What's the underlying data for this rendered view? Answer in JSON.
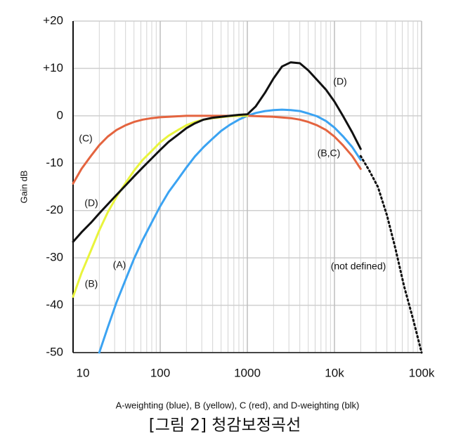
{
  "chart_data": {
    "type": "line",
    "log_x": true,
    "grid": true,
    "y_label": "Gain dB",
    "x_label": "A-weighting (blue), B (yellow), C (red), and D-weighting (blk)",
    "caption": "[그림 2] 청감보정곡선",
    "xlim": [
      10,
      100000
    ],
    "xticks": [
      10,
      100,
      1000,
      {
        "value": 10000,
        "label": "10k"
      },
      {
        "value": 100000,
        "label": "100k"
      }
    ],
    "ylim": [
      -50,
      20
    ],
    "yticks": [
      -50,
      -40,
      -30,
      -20,
      -10,
      0,
      {
        "value": 10,
        "label": "+10"
      },
      {
        "value": 20,
        "label": "+20"
      }
    ],
    "series": [
      {
        "name": "A",
        "color": "#3ba3f2",
        "dashed": false,
        "x": [
          20,
          25,
          31.5,
          40,
          50,
          63,
          80,
          100,
          125,
          160,
          200,
          250,
          315,
          400,
          500,
          630,
          800,
          1000,
          1250,
          1600,
          2000,
          2500,
          3150,
          4000,
          5000,
          6300,
          8000,
          10000,
          12500,
          16000,
          20000
        ],
        "values": [
          -50,
          -44.7,
          -39.4,
          -34.6,
          -30.2,
          -26.2,
          -22.5,
          -19.1,
          -16.1,
          -13.4,
          -10.9,
          -8.6,
          -6.6,
          -4.8,
          -3.2,
          -1.9,
          -0.8,
          0,
          0.6,
          1.0,
          1.2,
          1.3,
          1.2,
          1.0,
          0.5,
          -0.1,
          -1.1,
          -2.5,
          -4.3,
          -6.6,
          -9.3
        ]
      },
      {
        "name": "C",
        "color": "#e4643f",
        "dashed": false,
        "x": [
          10,
          12.5,
          16,
          20,
          25,
          31.5,
          40,
          50,
          63,
          80,
          100,
          125,
          160,
          200,
          500,
          1000,
          2000,
          3150,
          4000,
          5000,
          6300,
          8000,
          10000,
          12500,
          16000,
          20000
        ],
        "values": [
          -14.3,
          -11.2,
          -8.5,
          -6.2,
          -4.4,
          -3.0,
          -2.0,
          -1.3,
          -0.8,
          -0.5,
          -0.3,
          -0.2,
          -0.1,
          0,
          0,
          0,
          -0.2,
          -0.5,
          -0.8,
          -1.3,
          -2.0,
          -3.0,
          -4.4,
          -6.2,
          -8.5,
          -11.2
        ]
      },
      {
        "name": "B",
        "color": "#e9f43c",
        "dashed": false,
        "x": [
          10,
          12.5,
          16,
          20,
          25,
          31.5,
          40,
          50,
          63,
          80,
          100,
          125,
          160,
          200,
          250,
          315,
          400,
          500,
          630,
          800,
          1000
        ],
        "values": [
          -38.2,
          -33.2,
          -28.5,
          -24.2,
          -20.4,
          -17.1,
          -14.2,
          -11.6,
          -9.3,
          -7.4,
          -5.6,
          -4.2,
          -3.0,
          -2.0,
          -1.3,
          -0.8,
          -0.5,
          -0.3,
          -0.1,
          0,
          0
        ]
      },
      {
        "name": "D",
        "color": "#111111",
        "dashed": false,
        "x": [
          10,
          12.5,
          16,
          20,
          25,
          31.5,
          40,
          50,
          63,
          80,
          100,
          125,
          160,
          200,
          250,
          315,
          400,
          500,
          630,
          800,
          1000,
          1250,
          1600,
          2000,
          2500,
          3150,
          4000,
          5000,
          6300,
          8000,
          10000,
          12500,
          16000,
          20000
        ],
        "values": [
          -26.6,
          -24.6,
          -22.6,
          -20.6,
          -18.7,
          -16.7,
          -14.7,
          -12.8,
          -10.9,
          -9.0,
          -7.2,
          -5.5,
          -4.0,
          -2.6,
          -1.6,
          -0.8,
          -0.4,
          -0.2,
          0,
          0.2,
          0.3,
          2.0,
          4.9,
          7.9,
          10.4,
          11.3,
          11.1,
          9.6,
          7.6,
          5.5,
          3.0,
          0,
          -3.5,
          -7.0
        ]
      },
      {
        "name": "not defined",
        "color": "#111111",
        "dashed": true,
        "x": [
          20000,
          25000,
          31500,
          40000,
          50000,
          63000,
          80000,
          100000
        ],
        "values": [
          -8.5,
          -11.5,
          -15,
          -21,
          -28,
          -36,
          -43,
          -50
        ]
      }
    ],
    "annotations": [
      "(D)",
      "(C)",
      "(B,C)",
      "(D)",
      "(A)",
      "(B)",
      "(not defined)"
    ]
  }
}
